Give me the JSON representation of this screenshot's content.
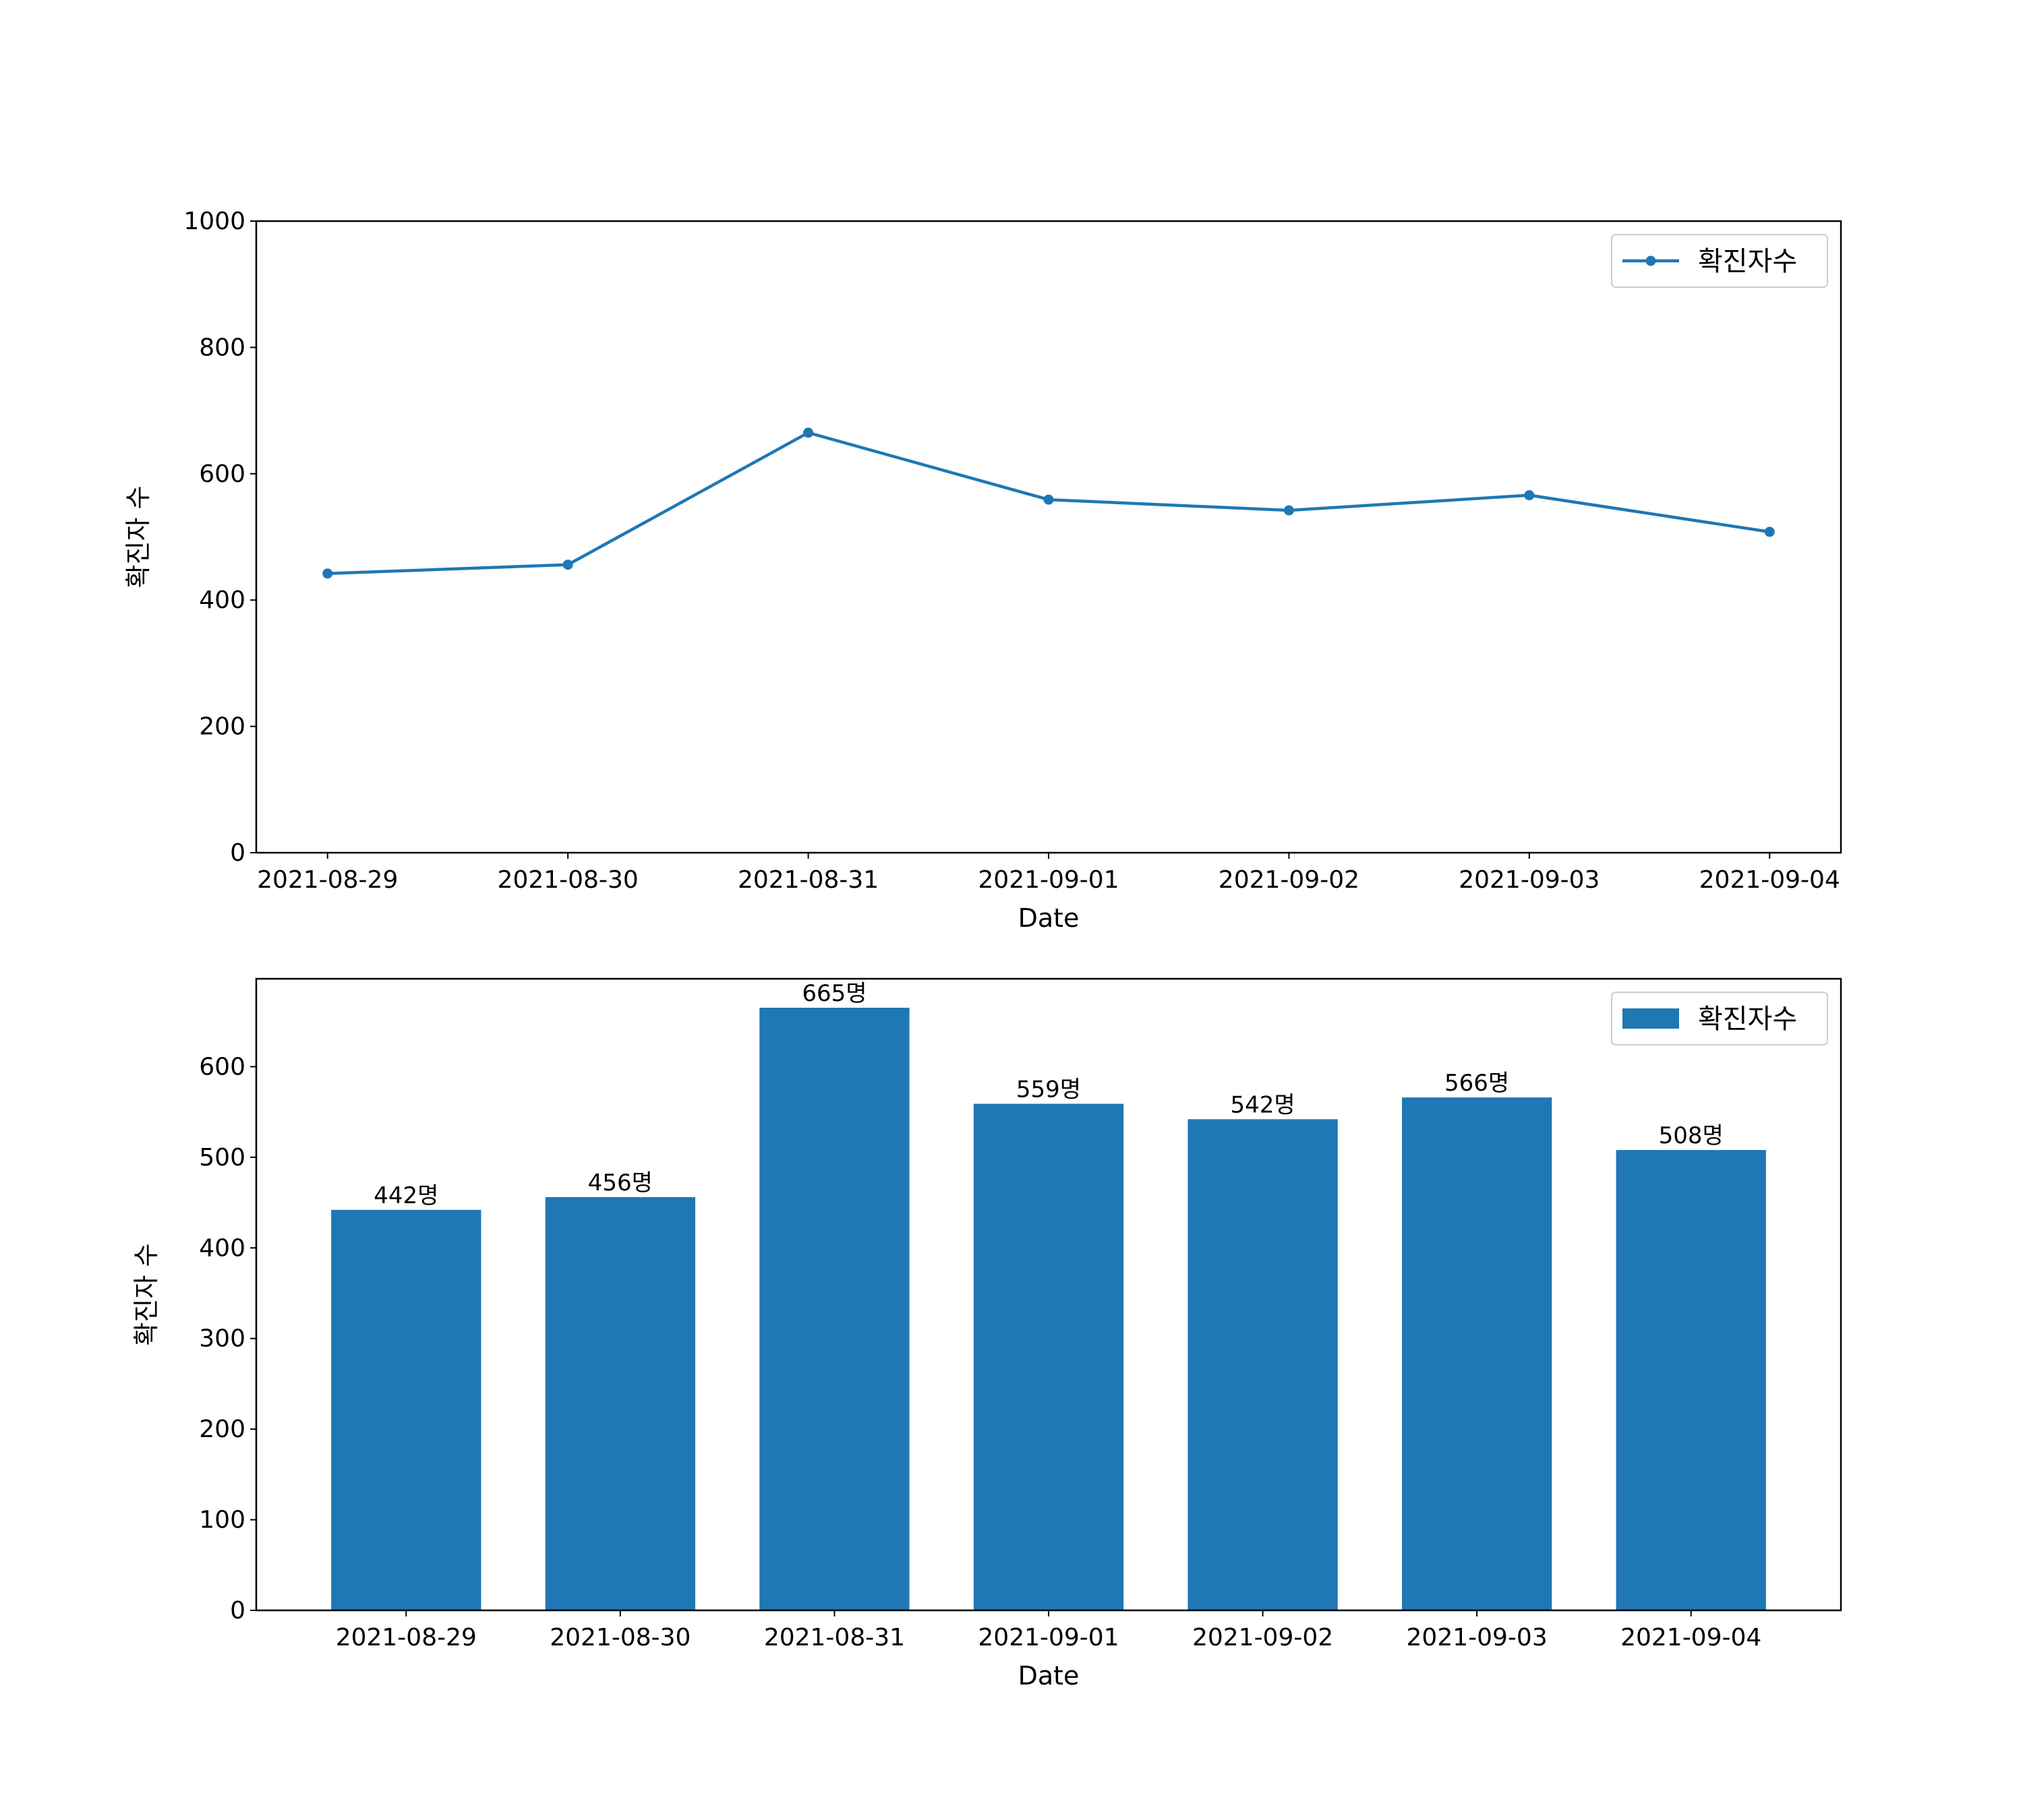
{
  "chart_data": [
    {
      "type": "line",
      "categories": [
        "2021-08-29",
        "2021-08-30",
        "2021-08-31",
        "2021-09-01",
        "2021-09-02",
        "2021-09-03",
        "2021-09-04"
      ],
      "series": [
        {
          "name": "확진자수",
          "values": [
            442,
            456,
            665,
            559,
            542,
            566,
            508
          ],
          "color": "#1f77b4",
          "marker": "circle"
        }
      ],
      "xlabel": "Date",
      "ylabel": "확진자 수",
      "ylim": [
        0,
        1000
      ],
      "yticks": [
        0,
        200,
        400,
        600,
        800,
        1000
      ],
      "legend": "top-right",
      "grid": false
    },
    {
      "type": "bar",
      "categories": [
        "2021-08-29",
        "2021-08-30",
        "2021-08-31",
        "2021-09-01",
        "2021-09-02",
        "2021-09-03",
        "2021-09-04"
      ],
      "series": [
        {
          "name": "확진자수",
          "values": [
            442,
            456,
            665,
            559,
            542,
            566,
            508
          ],
          "color": "#1f77b4"
        }
      ],
      "data_labels": [
        "442명",
        "456명",
        "665명",
        "559명",
        "542명",
        "566명",
        "508명"
      ],
      "xlabel": "Date",
      "ylabel": "확진자 수",
      "ylim": [
        0,
        697
      ],
      "yticks": [
        0,
        100,
        200,
        300,
        400,
        500,
        600
      ],
      "legend": "top-right",
      "grid": false
    }
  ]
}
